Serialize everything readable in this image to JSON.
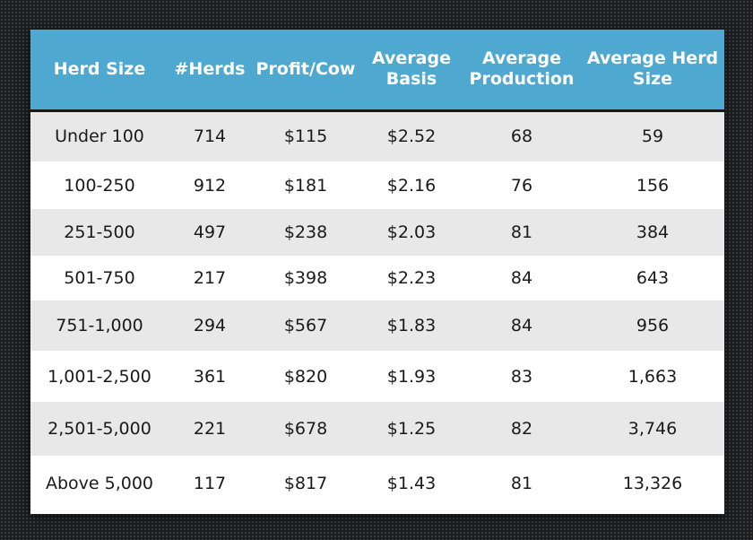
{
  "chart_data": {
    "type": "table",
    "columns": [
      "Herd Size",
      "#Herds",
      "Profit/Cow",
      "Average Basis",
      "Average Production",
      "Average Herd Size"
    ],
    "rows": [
      [
        "Under 100",
        "714",
        "$115",
        "$2.52",
        "68",
        "59"
      ],
      [
        "100-250",
        "912",
        "$181",
        "$2.16",
        "76",
        "156"
      ],
      [
        "251-500",
        "497",
        "$238",
        "$2.03",
        "81",
        "384"
      ],
      [
        "501-750",
        "217",
        "$398",
        "$2.23",
        "84",
        "643"
      ],
      [
        "751-1,000",
        "294",
        "$567",
        "$1.83",
        "84",
        "956"
      ],
      [
        "1,001-2,500",
        "361",
        "$820",
        "$1.93",
        "83",
        "1,663"
      ],
      [
        "2,501-5,000",
        "221",
        "$678",
        "$1.25",
        "82",
        "3,746"
      ],
      [
        "Above 5,000",
        "117",
        "$817",
        "$1.43",
        "81",
        "13,326"
      ]
    ],
    "header_color": "#4ea8cf",
    "stripe_color": "#e8e8e8"
  }
}
